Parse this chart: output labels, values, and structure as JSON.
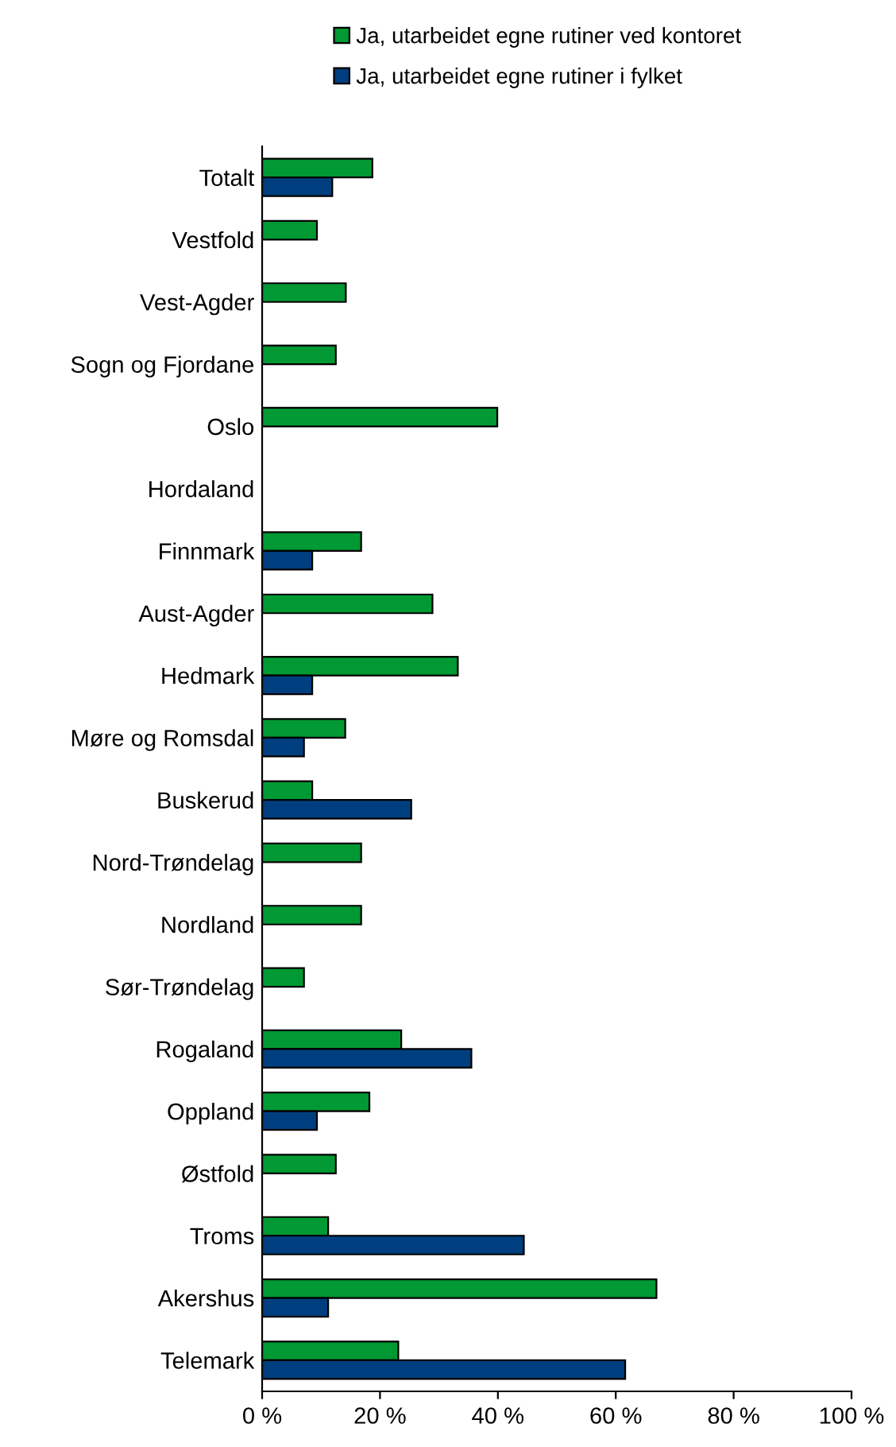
{
  "chart_data": {
    "type": "bar",
    "orientation": "horizontal",
    "legend": "top",
    "grid": false,
    "categories": [
      "Totalt",
      "Vestfold",
      "Vest-Agder",
      "Sogn og Fjordane",
      "Oslo",
      "Hordaland",
      "Finnmark",
      "Aust-Agder",
      "Hedmark",
      "Møre og Romsdal",
      "Buskerud",
      "Nord-Trøndelag",
      "Nordland",
      "Sør-Trøndelag",
      "Rogaland",
      "Oppland",
      "Østfold",
      "Troms",
      "Akershus",
      "Telemark"
    ],
    "series": [
      {
        "name": "Ja, utarbeidet egne rutiner ved kontoret",
        "color": "#009933",
        "values": [
          18.7,
          9.3,
          14.2,
          12.5,
          39.9,
          null,
          16.8,
          28.9,
          33.2,
          14.1,
          8.5,
          16.8,
          16.8,
          7.1,
          23.6,
          18.2,
          12.5,
          11.2,
          66.9,
          23.1
        ]
      },
      {
        "name": "Ja, utarbeidet egne rutiner i fylket",
        "color": "#003f7f",
        "values": [
          11.9,
          null,
          null,
          null,
          null,
          null,
          8.5,
          null,
          8.5,
          7.1,
          25.3,
          null,
          null,
          null,
          35.5,
          9.3,
          null,
          44.4,
          11.2,
          61.6
        ]
      }
    ],
    "xlim": [
      0,
      100
    ],
    "xticks": [
      {
        "value": 0,
        "label": "0 %"
      },
      {
        "value": 20,
        "label": "20 %"
      },
      {
        "value": 40,
        "label": "40 %"
      },
      {
        "value": 60,
        "label": "60 %"
      },
      {
        "value": 80,
        "label": "80 %"
      },
      {
        "value": 100,
        "label": "100 %"
      }
    ]
  }
}
